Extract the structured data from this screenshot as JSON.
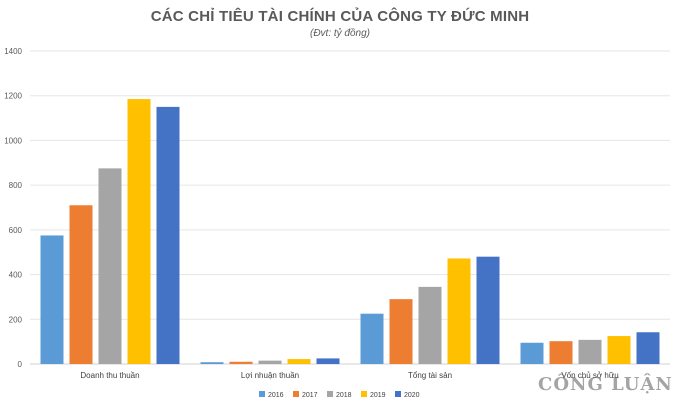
{
  "chart_data": {
    "type": "bar",
    "title": "CÁC CHỈ TIÊU TÀI CHÍNH CỦA CÔNG TY ĐỨC MINH",
    "subtitle": "(Đvt: tỷ đồng)",
    "categories": [
      "Doanh thu thuần",
      "Lợi nhuận thuần",
      "Tổng tài sản",
      "Vốn chủ sở hữu"
    ],
    "series": [
      {
        "name": "2016",
        "color": "#5B9BD5",
        "values": [
          575,
          8,
          225,
          95
        ]
      },
      {
        "name": "2017",
        "color": "#ED7D31",
        "values": [
          710,
          10,
          290,
          102
        ]
      },
      {
        "name": "2018",
        "color": "#A5A5A5",
        "values": [
          875,
          15,
          345,
          108
        ]
      },
      {
        "name": "2019",
        "color": "#FFC000",
        "values": [
          1185,
          22,
          472,
          125
        ]
      },
      {
        "name": "2020",
        "color": "#4472C4",
        "values": [
          1150,
          25,
          480,
          142
        ]
      }
    ],
    "ylim": [
      0,
      1400
    ],
    "yticks": [
      "0",
      "200",
      "400",
      "600",
      "800",
      "1000",
      "1200",
      "1400"
    ],
    "grid": true,
    "legend": "bottom"
  },
  "watermark": "CÔNG LUẬN"
}
